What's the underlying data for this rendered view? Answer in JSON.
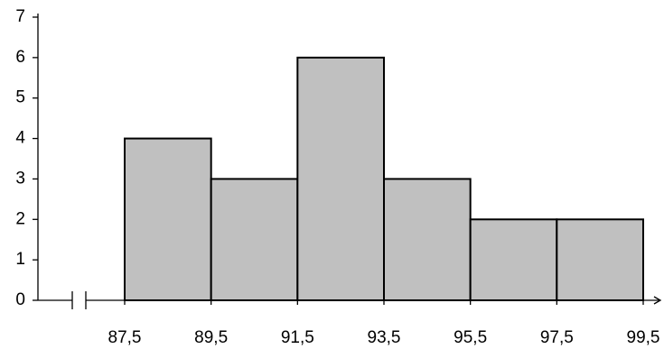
{
  "chart_data": {
    "type": "histogram",
    "bins": [
      87.5,
      89.5,
      91.5,
      93.5,
      95.5,
      97.5,
      99.5
    ],
    "values": [
      4,
      3,
      6,
      3,
      2,
      2
    ],
    "color": "#c0c0c0",
    "xlim": [
      87.5,
      99.5
    ],
    "xticks": [
      {
        "value": 87.5,
        "label": "87,5"
      },
      {
        "value": 89.5,
        "label": "89,5"
      },
      {
        "value": 91.5,
        "label": "91,5"
      },
      {
        "value": 93.5,
        "label": "93,5"
      },
      {
        "value": 95.5,
        "label": "95,5"
      },
      {
        "value": 97.5,
        "label": "97,5"
      },
      {
        "value": 99.5,
        "label": "99,5"
      }
    ],
    "ylim": [
      0,
      7
    ],
    "yticks": [
      0,
      1,
      2,
      3,
      4,
      5,
      6,
      7
    ]
  }
}
